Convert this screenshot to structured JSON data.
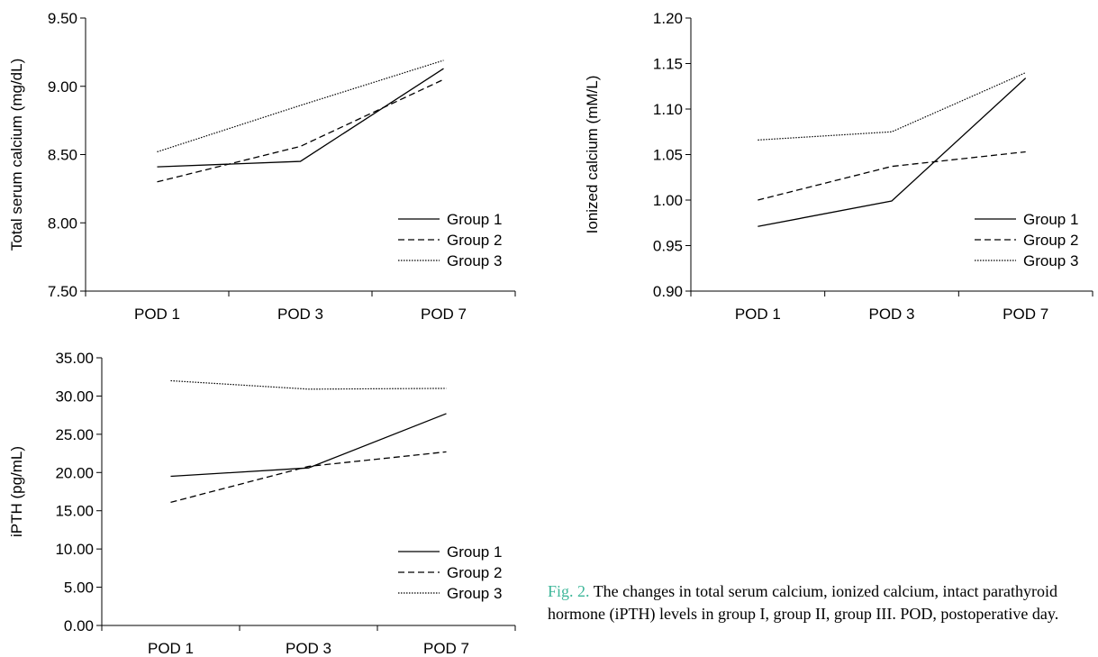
{
  "chart_data": [
    {
      "type": "line",
      "categories": [
        "POD 1",
        "POD 3",
        "POD 7"
      ],
      "ylabel": "Total serum calcium (mg/dL)",
      "xlabel": "",
      "ylim": [
        7.5,
        9.5
      ],
      "yticks": [
        "7.50",
        "8.00",
        "8.50",
        "9.00",
        "9.50"
      ],
      "legend_position": "bottom-right",
      "series": [
        {
          "name": "Group 1",
          "style": "solid",
          "values": [
            8.41,
            8.45,
            9.13
          ]
        },
        {
          "name": "Group 2",
          "style": "dashed",
          "values": [
            8.3,
            8.56,
            9.05
          ]
        },
        {
          "name": "Group 3",
          "style": "dotted",
          "values": [
            8.52,
            8.86,
            9.19
          ]
        }
      ]
    },
    {
      "type": "line",
      "categories": [
        "POD 1",
        "POD 3",
        "POD 7"
      ],
      "ylabel": "Ionized calcium (mM/L)",
      "xlabel": "",
      "ylim": [
        0.9,
        1.2
      ],
      "yticks": [
        "0.90",
        "0.95",
        "1.00",
        "1.05",
        "1.10",
        "1.15",
        "1.20"
      ],
      "legend_position": "bottom-right",
      "series": [
        {
          "name": "Group 1",
          "style": "solid",
          "values": [
            0.971,
            0.999,
            1.134
          ]
        },
        {
          "name": "Group 2",
          "style": "dashed",
          "values": [
            1.0,
            1.037,
            1.053
          ]
        },
        {
          "name": "Group 3",
          "style": "dotted",
          "values": [
            1.066,
            1.075,
            1.14
          ]
        }
      ]
    },
    {
      "type": "line",
      "categories": [
        "POD 1",
        "POD 3",
        "POD 7"
      ],
      "ylabel": "iPTH (pg/mL)",
      "xlabel": "",
      "ylim": [
        0,
        35
      ],
      "yticks": [
        "0.00",
        "5.00",
        "10.00",
        "15.00",
        "20.00",
        "25.00",
        "30.00",
        "35.00"
      ],
      "legend_position": "bottom-right",
      "series": [
        {
          "name": "Group 1",
          "style": "solid",
          "values": [
            19.5,
            20.6,
            27.7
          ]
        },
        {
          "name": "Group 2",
          "style": "dashed",
          "values": [
            16.1,
            20.8,
            22.7
          ]
        },
        {
          "name": "Group 3",
          "style": "dotted",
          "values": [
            32.0,
            30.9,
            31.0
          ]
        }
      ]
    }
  ],
  "caption": {
    "label": "Fig. 2.",
    "text": " The changes in total serum calcium, ionized calcium, intact parathyroid hormone (iPTH) levels in group I, group II, group III. POD, postoperative day."
  }
}
